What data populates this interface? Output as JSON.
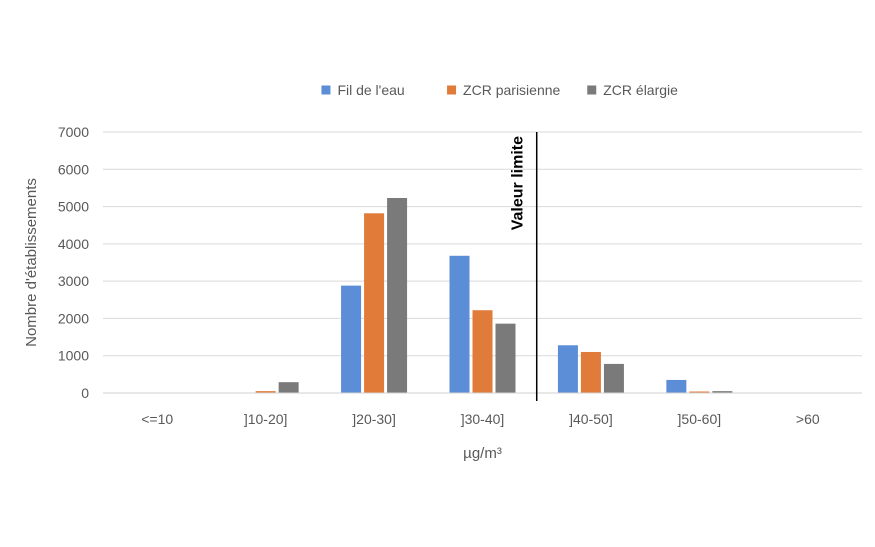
{
  "chart_data": {
    "type": "bar",
    "categories": [
      "<=10",
      "]10-20]",
      "]20-30]",
      "]30-40]",
      "]40-50]",
      "]50-60]",
      ">60"
    ],
    "series": [
      {
        "name": "Fil de l'eau",
        "color": "#5b8ed6",
        "values": [
          0,
          0,
          2880,
          3680,
          1280,
          350,
          0
        ]
      },
      {
        "name": "ZCR parisienne",
        "color": "#e07b39",
        "values": [
          0,
          50,
          4820,
          2220,
          1100,
          40,
          0
        ]
      },
      {
        "name": "ZCR élargie",
        "color": "#7a7a7a",
        "values": [
          0,
          290,
          5230,
          1860,
          780,
          50,
          0
        ]
      }
    ],
    "title": "",
    "xlabel": "µg/m³",
    "ylabel": "Nombre d'établissements",
    "ylim": [
      0,
      7000
    ],
    "yticks": [
      0,
      1000,
      2000,
      3000,
      4000,
      5000,
      6000,
      7000
    ],
    "grid": true,
    "legend_position": "top",
    "annotations": [
      {
        "text": "Valeur limite",
        "x": 40
      }
    ]
  }
}
